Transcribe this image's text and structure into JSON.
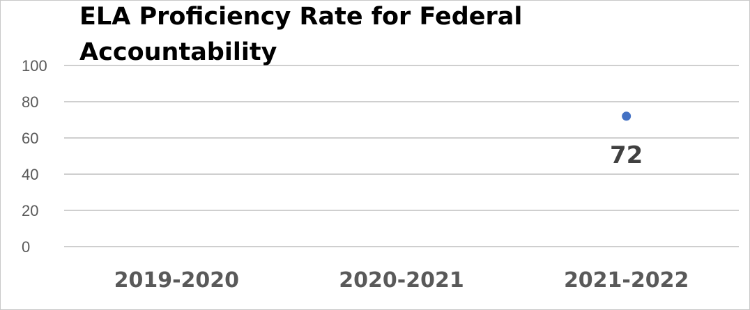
{
  "chart_data": {
    "type": "scatter",
    "title_lines": [
      "ELA Proficiency Rate for Federal",
      "Accountability"
    ],
    "categories": [
      "2019-2020",
      "2020-2021",
      "2021-2022"
    ],
    "values": [
      null,
      null,
      72
    ],
    "data_labels": [
      "",
      "",
      "72"
    ],
    "yticks": [
      "0",
      "20",
      "40",
      "60",
      "80",
      "100"
    ],
    "ylim": [
      0,
      100
    ],
    "grid": true,
    "legend": "none",
    "xlabel": "",
    "ylabel": "",
    "point_color": "#4472c4",
    "gridline_color": "#bfbfbf"
  }
}
